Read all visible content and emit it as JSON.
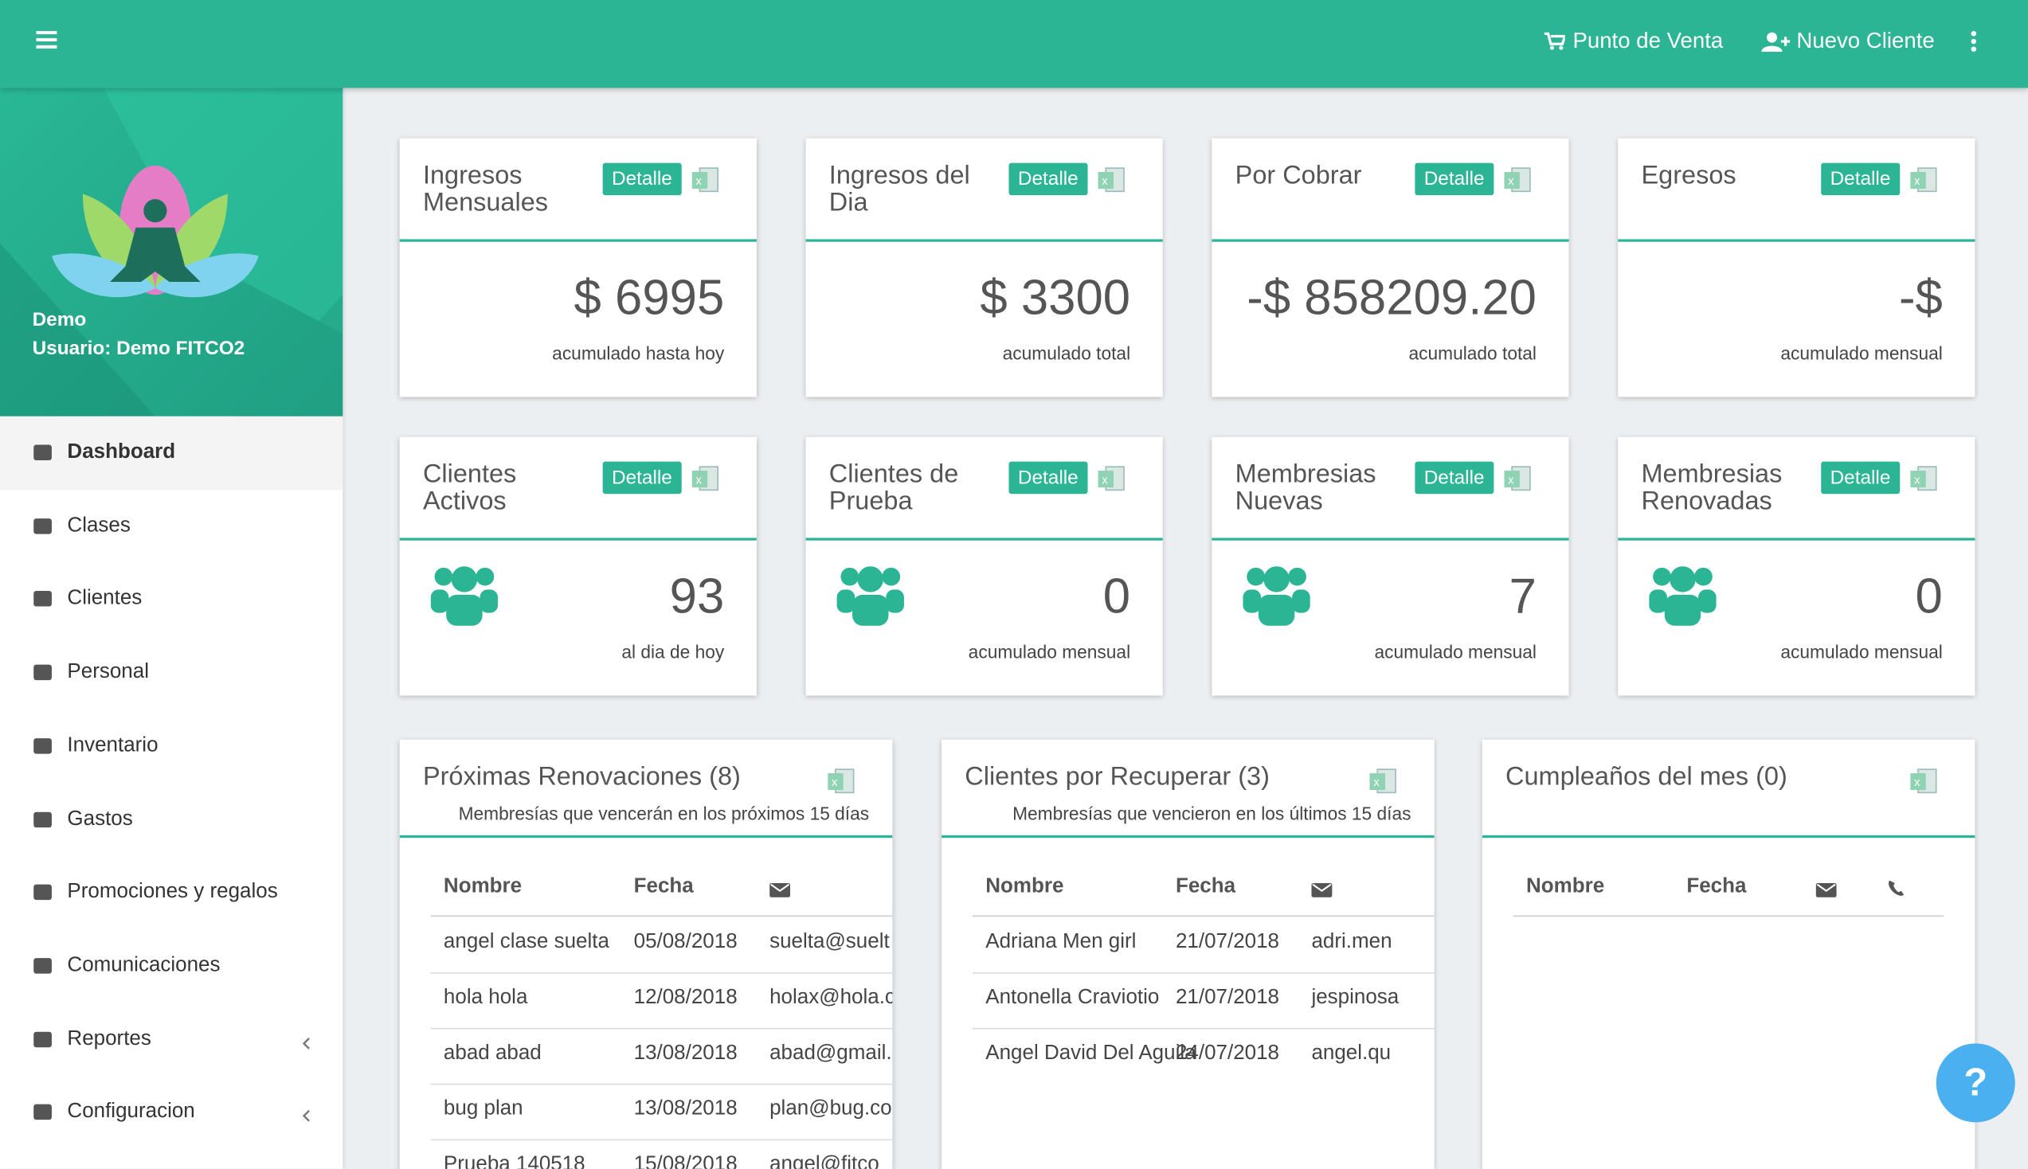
{
  "header": {
    "links": [
      "Punto de Venta",
      "Nuevo Cliente"
    ]
  },
  "profile": {
    "name": "Demo",
    "user": "Usuario: Demo FITCO2"
  },
  "menu": [
    {
      "label": "Dashboard",
      "active": true,
      "submenu": false
    },
    {
      "label": "Clases",
      "active": false,
      "submenu": false
    },
    {
      "label": "Clientes",
      "active": false,
      "submenu": false
    },
    {
      "label": "Personal",
      "active": false,
      "submenu": false
    },
    {
      "label": "Inventario",
      "active": false,
      "submenu": false
    },
    {
      "label": "Gastos",
      "active": false,
      "submenu": false
    },
    {
      "label": "Promociones y regalos",
      "active": false,
      "submenu": false
    },
    {
      "label": "Comunicaciones",
      "active": false,
      "submenu": false
    },
    {
      "label": "Reportes",
      "active": false,
      "submenu": true
    },
    {
      "label": "Configuracion",
      "active": false,
      "submenu": true
    }
  ],
  "money_cards": [
    {
      "title": "Ingresos Mensuales",
      "button": "Detalle",
      "value": "$ 6995",
      "caption": "acumulado hasta hoy"
    },
    {
      "title": "Ingresos del Dia",
      "button": "Detalle",
      "value": "$ 3300",
      "caption": "acumulado total"
    },
    {
      "title": "Por Cobrar",
      "button": "Detalle",
      "value": "-$ 858209.20",
      "caption": "acumulado total"
    },
    {
      "title": "Egresos",
      "button": "Detalle",
      "value": "-$",
      "caption": "acumulado mensual"
    }
  ],
  "count_cards": [
    {
      "title": "Clientes Activos",
      "button": "Detalle",
      "value": "93",
      "caption": "al dia de hoy"
    },
    {
      "title": "Clientes de Prueba",
      "button": "Detalle",
      "value": "0",
      "caption": "acumulado mensual"
    },
    {
      "title": "Membresias Nuevas",
      "button": "Detalle",
      "value": "7",
      "caption": "acumulado mensual"
    },
    {
      "title": "Membresias Renovadas",
      "button": "Detalle",
      "value": "0",
      "caption": "acumulado mensual"
    }
  ],
  "tables": [
    {
      "title": "Próximas Renovaciones (8)",
      "subtitle": "Membresías que vencerán en los próximos 15 días",
      "columns": [
        "Nombre",
        "Fecha"
      ],
      "phone": false,
      "rows": [
        [
          "angel clase suelta",
          "05/08/2018",
          "suelta@suelt"
        ],
        [
          "hola hola",
          "12/08/2018",
          "holax@hola.c"
        ],
        [
          "abad abad",
          "13/08/2018",
          "abad@gmail."
        ],
        [
          "bug plan",
          "13/08/2018",
          "plan@bug.co"
        ],
        [
          "Prueba 140518",
          "15/08/2018",
          "angel@fitco"
        ]
      ]
    },
    {
      "title": "Clientes por Recuperar (3)",
      "subtitle": "Membresías que vencieron en los últimos 15 días",
      "columns": [
        "Nombre",
        "Fecha"
      ],
      "phone": false,
      "rows": [
        [
          "Adriana Men girl",
          "21/07/2018",
          "adri.men"
        ],
        [
          "Antonella Craviotio",
          "21/07/2018",
          "jespinosa"
        ],
        [
          "Angel David Del Aguila",
          "24/07/2018",
          "angel.qu"
        ]
      ]
    },
    {
      "title": "Cumpleaños del mes (0)",
      "subtitle": null,
      "columns": [
        "Nombre",
        "Fecha"
      ],
      "phone": true,
      "rows": []
    }
  ],
  "help": "?"
}
